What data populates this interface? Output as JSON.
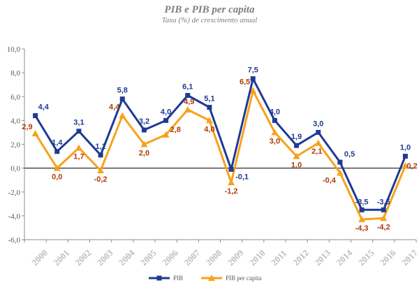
{
  "chart_data": {
    "type": "line",
    "title": "PIB e PIB per capita",
    "subtitle": "Taxa (%) de crescimento anual",
    "categories": [
      "2000",
      "2001",
      "2002",
      "2003",
      "2004",
      "2005",
      "2006",
      "2007",
      "2008",
      "2009",
      "2010",
      "2011",
      "2012",
      "2013",
      "2014",
      "2015",
      "2016",
      "2017"
    ],
    "y_tick_labels": [
      "10,0",
      "8,0",
      "6,0",
      "4,0",
      "2,0",
      "0,0",
      "-2,0",
      "-4,0",
      "-6,0"
    ],
    "ylim": [
      -6,
      10
    ],
    "grid": false,
    "legend_position": "bottom",
    "series": [
      {
        "name": "PIB",
        "color": "#1f3a93",
        "marker": "square",
        "values": [
          4.4,
          1.4,
          3.1,
          1.1,
          5.8,
          3.2,
          4.0,
          6.1,
          5.1,
          -0.1,
          7.5,
          4.0,
          1.9,
          3.0,
          0.5,
          -3.5,
          -3.5,
          1.0
        ],
        "labels": [
          "4,4",
          "1,4",
          "3,1",
          "1,1",
          "5,8",
          "3,2",
          "4,0",
          "6,1",
          "5,1",
          "-0,1",
          "7,5",
          "4,0",
          "1,9",
          "3,0",
          "0,5",
          "-3,5",
          "-3,5",
          "1,0"
        ],
        "label_color": "#1f3a93"
      },
      {
        "name": "PIB per capita",
        "color": "#f7a21b",
        "marker": "triangle",
        "values": [
          2.9,
          0.0,
          1.7,
          -0.2,
          4.4,
          2.0,
          2.8,
          4.9,
          4.0,
          -1.2,
          6.5,
          3.0,
          1.0,
          2.1,
          -0.4,
          -4.3,
          -4.2,
          0.2
        ],
        "labels": [
          "2,9",
          "0,0",
          "1,7",
          "-0,2",
          "4,4",
          "2,0",
          "2,8",
          "4,9",
          "4,0",
          "-1,2",
          "6,5",
          "3,0",
          "1,0",
          "2,1",
          "-0,4",
          "-4,3",
          "-4,2",
          "0,2"
        ],
        "label_color": "#b23a05"
      }
    ]
  }
}
